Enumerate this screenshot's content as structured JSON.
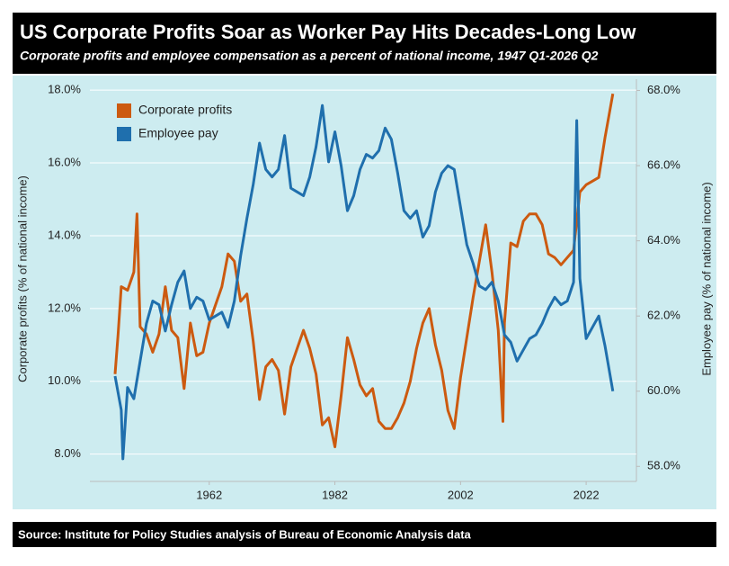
{
  "chart_data": {
    "type": "line",
    "title": "US Corporate Profits Soar as Worker Pay Hits Decades-Long Low",
    "subtitle": "Corporate profits and employee compensation as a percent of national income, 1947 Q1-2026 Q2",
    "source": "Source: Institute for Policy Studies analysis of Bureau of Economic Analysis data",
    "y_label": "Corporate profits (% of national income)",
    "y2_label": "Employee pay (% of national income)",
    "xlim": [
      1943,
      2030
    ],
    "xticks": [
      1962,
      1982,
      2002,
      2022
    ],
    "ylim": [
      7.25,
      18.3
    ],
    "yticks": [
      {
        "value": 8,
        "label": "8.0%"
      },
      {
        "value": 10,
        "label": "10.0%"
      },
      {
        "value": 12,
        "label": "12.0%"
      },
      {
        "value": 14,
        "label": "14.0%"
      },
      {
        "value": 16,
        "label": "16.0%"
      },
      {
        "value": 18,
        "label": "18.0%"
      }
    ],
    "y2lim": [
      57.6,
      68.3
    ],
    "y2ticks": [
      {
        "value": 58,
        "label": "58.0%"
      },
      {
        "value": 60,
        "label": "60.0%"
      },
      {
        "value": 62,
        "label": "62.0%"
      },
      {
        "value": 64,
        "label": "64.0%"
      },
      {
        "value": 66,
        "label": "66.0%"
      },
      {
        "value": 68,
        "label": "68.0%"
      }
    ],
    "grid": true,
    "legend": "top-left",
    "series": [
      {
        "name": "Corporate profits",
        "color": "#cc5a10",
        "x": [
          1947,
          1947.5,
          1948,
          1949,
          1950,
          1950.5,
          1951,
          1952,
          1953,
          1954,
          1955,
          1956,
          1957,
          1958,
          1959,
          1960,
          1961,
          1962,
          1963,
          1964,
          1965,
          1966,
          1967,
          1968,
          1969,
          1970,
          1971,
          1972,
          1973,
          1974,
          1975,
          1976,
          1977,
          1978,
          1979,
          1980,
          1981,
          1982,
          1983,
          1984,
          1985,
          1986,
          1987,
          1988,
          1989,
          1990,
          1991,
          1992,
          1993,
          1994,
          1995,
          1996,
          1997,
          1998,
          1999,
          2000,
          2001,
          2002,
          2003,
          2004,
          2005,
          2006,
          2007,
          2008,
          2008.75,
          2009,
          2010,
          2011,
          2012,
          2013,
          2014,
          2015,
          2016,
          2017,
          2018,
          2019,
          2020,
          2021,
          2022,
          2023,
          2024,
          2025,
          2026.25
        ],
        "values": [
          10.2,
          11.3,
          12.6,
          12.5,
          13.0,
          14.6,
          11.5,
          11.3,
          10.8,
          11.3,
          12.6,
          11.4,
          11.2,
          9.8,
          11.6,
          10.7,
          10.8,
          11.6,
          12.1,
          12.6,
          13.5,
          13.3,
          12.2,
          12.4,
          11.1,
          9.5,
          10.4,
          10.6,
          10.3,
          9.1,
          10.4,
          10.9,
          11.4,
          10.9,
          10.2,
          8.8,
          9.0,
          8.2,
          9.6,
          11.2,
          10.6,
          9.9,
          9.6,
          9.8,
          8.9,
          8.7,
          8.7,
          9.0,
          9.4,
          10.0,
          10.9,
          11.6,
          12.0,
          11.0,
          10.3,
          9.2,
          8.7,
          10.1,
          11.2,
          12.3,
          13.3,
          14.3,
          13.0,
          11.4,
          8.9,
          11.6,
          13.8,
          13.7,
          14.4,
          14.6,
          14.6,
          14.3,
          13.5,
          13.4,
          13.2,
          13.4,
          13.6,
          15.2,
          15.4,
          15.5,
          15.6,
          16.7,
          17.9
        ]
      },
      {
        "name": "Employee pay",
        "color": "#1f6fad",
        "axis": "y2",
        "x": [
          1947,
          1948,
          1948.25,
          1949,
          1950,
          1951,
          1952,
          1953,
          1954,
          1955,
          1956,
          1957,
          1958,
          1959,
          1960,
          1961,
          1962,
          1963,
          1964,
          1965,
          1966,
          1967,
          1968,
          1969,
          1970,
          1971,
          1972,
          1973,
          1974,
          1975,
          1976,
          1977,
          1978,
          1979,
          1980,
          1981,
          1982,
          1983,
          1984,
          1985,
          1986,
          1987,
          1988,
          1989,
          1990,
          1991,
          1992,
          1993,
          1994,
          1995,
          1996,
          1997,
          1998,
          1999,
          2000,
          2001,
          2002,
          2003,
          2004,
          2005,
          2006,
          2007,
          2008,
          2009,
          2010,
          2011,
          2012,
          2013,
          2014,
          2015,
          2016,
          2017,
          2018,
          2019,
          2020,
          2020.5,
          2021,
          2022,
          2023,
          2024,
          2025,
          2026.25
        ],
        "values": [
          60.4,
          59.5,
          58.2,
          60.1,
          59.8,
          60.8,
          61.8,
          62.4,
          62.3,
          61.6,
          62.3,
          62.9,
          63.2,
          62.2,
          62.5,
          62.4,
          61.9,
          62.0,
          62.1,
          61.7,
          62.4,
          63.6,
          64.6,
          65.5,
          66.6,
          65.9,
          65.7,
          65.9,
          66.8,
          65.4,
          65.3,
          65.2,
          65.7,
          66.5,
          67.6,
          66.1,
          66.9,
          66.0,
          64.8,
          65.2,
          65.9,
          66.3,
          66.2,
          66.4,
          67.0,
          66.7,
          65.8,
          64.8,
          64.6,
          64.8,
          64.1,
          64.4,
          65.3,
          65.8,
          66.0,
          65.9,
          64.9,
          63.9,
          63.4,
          62.8,
          62.7,
          62.9,
          62.4,
          61.5,
          61.3,
          60.8,
          61.1,
          61.4,
          61.5,
          61.8,
          62.2,
          62.5,
          62.3,
          62.4,
          62.9,
          67.2,
          63.0,
          61.4,
          61.7,
          62.0,
          61.2,
          60.0
        ]
      }
    ]
  }
}
